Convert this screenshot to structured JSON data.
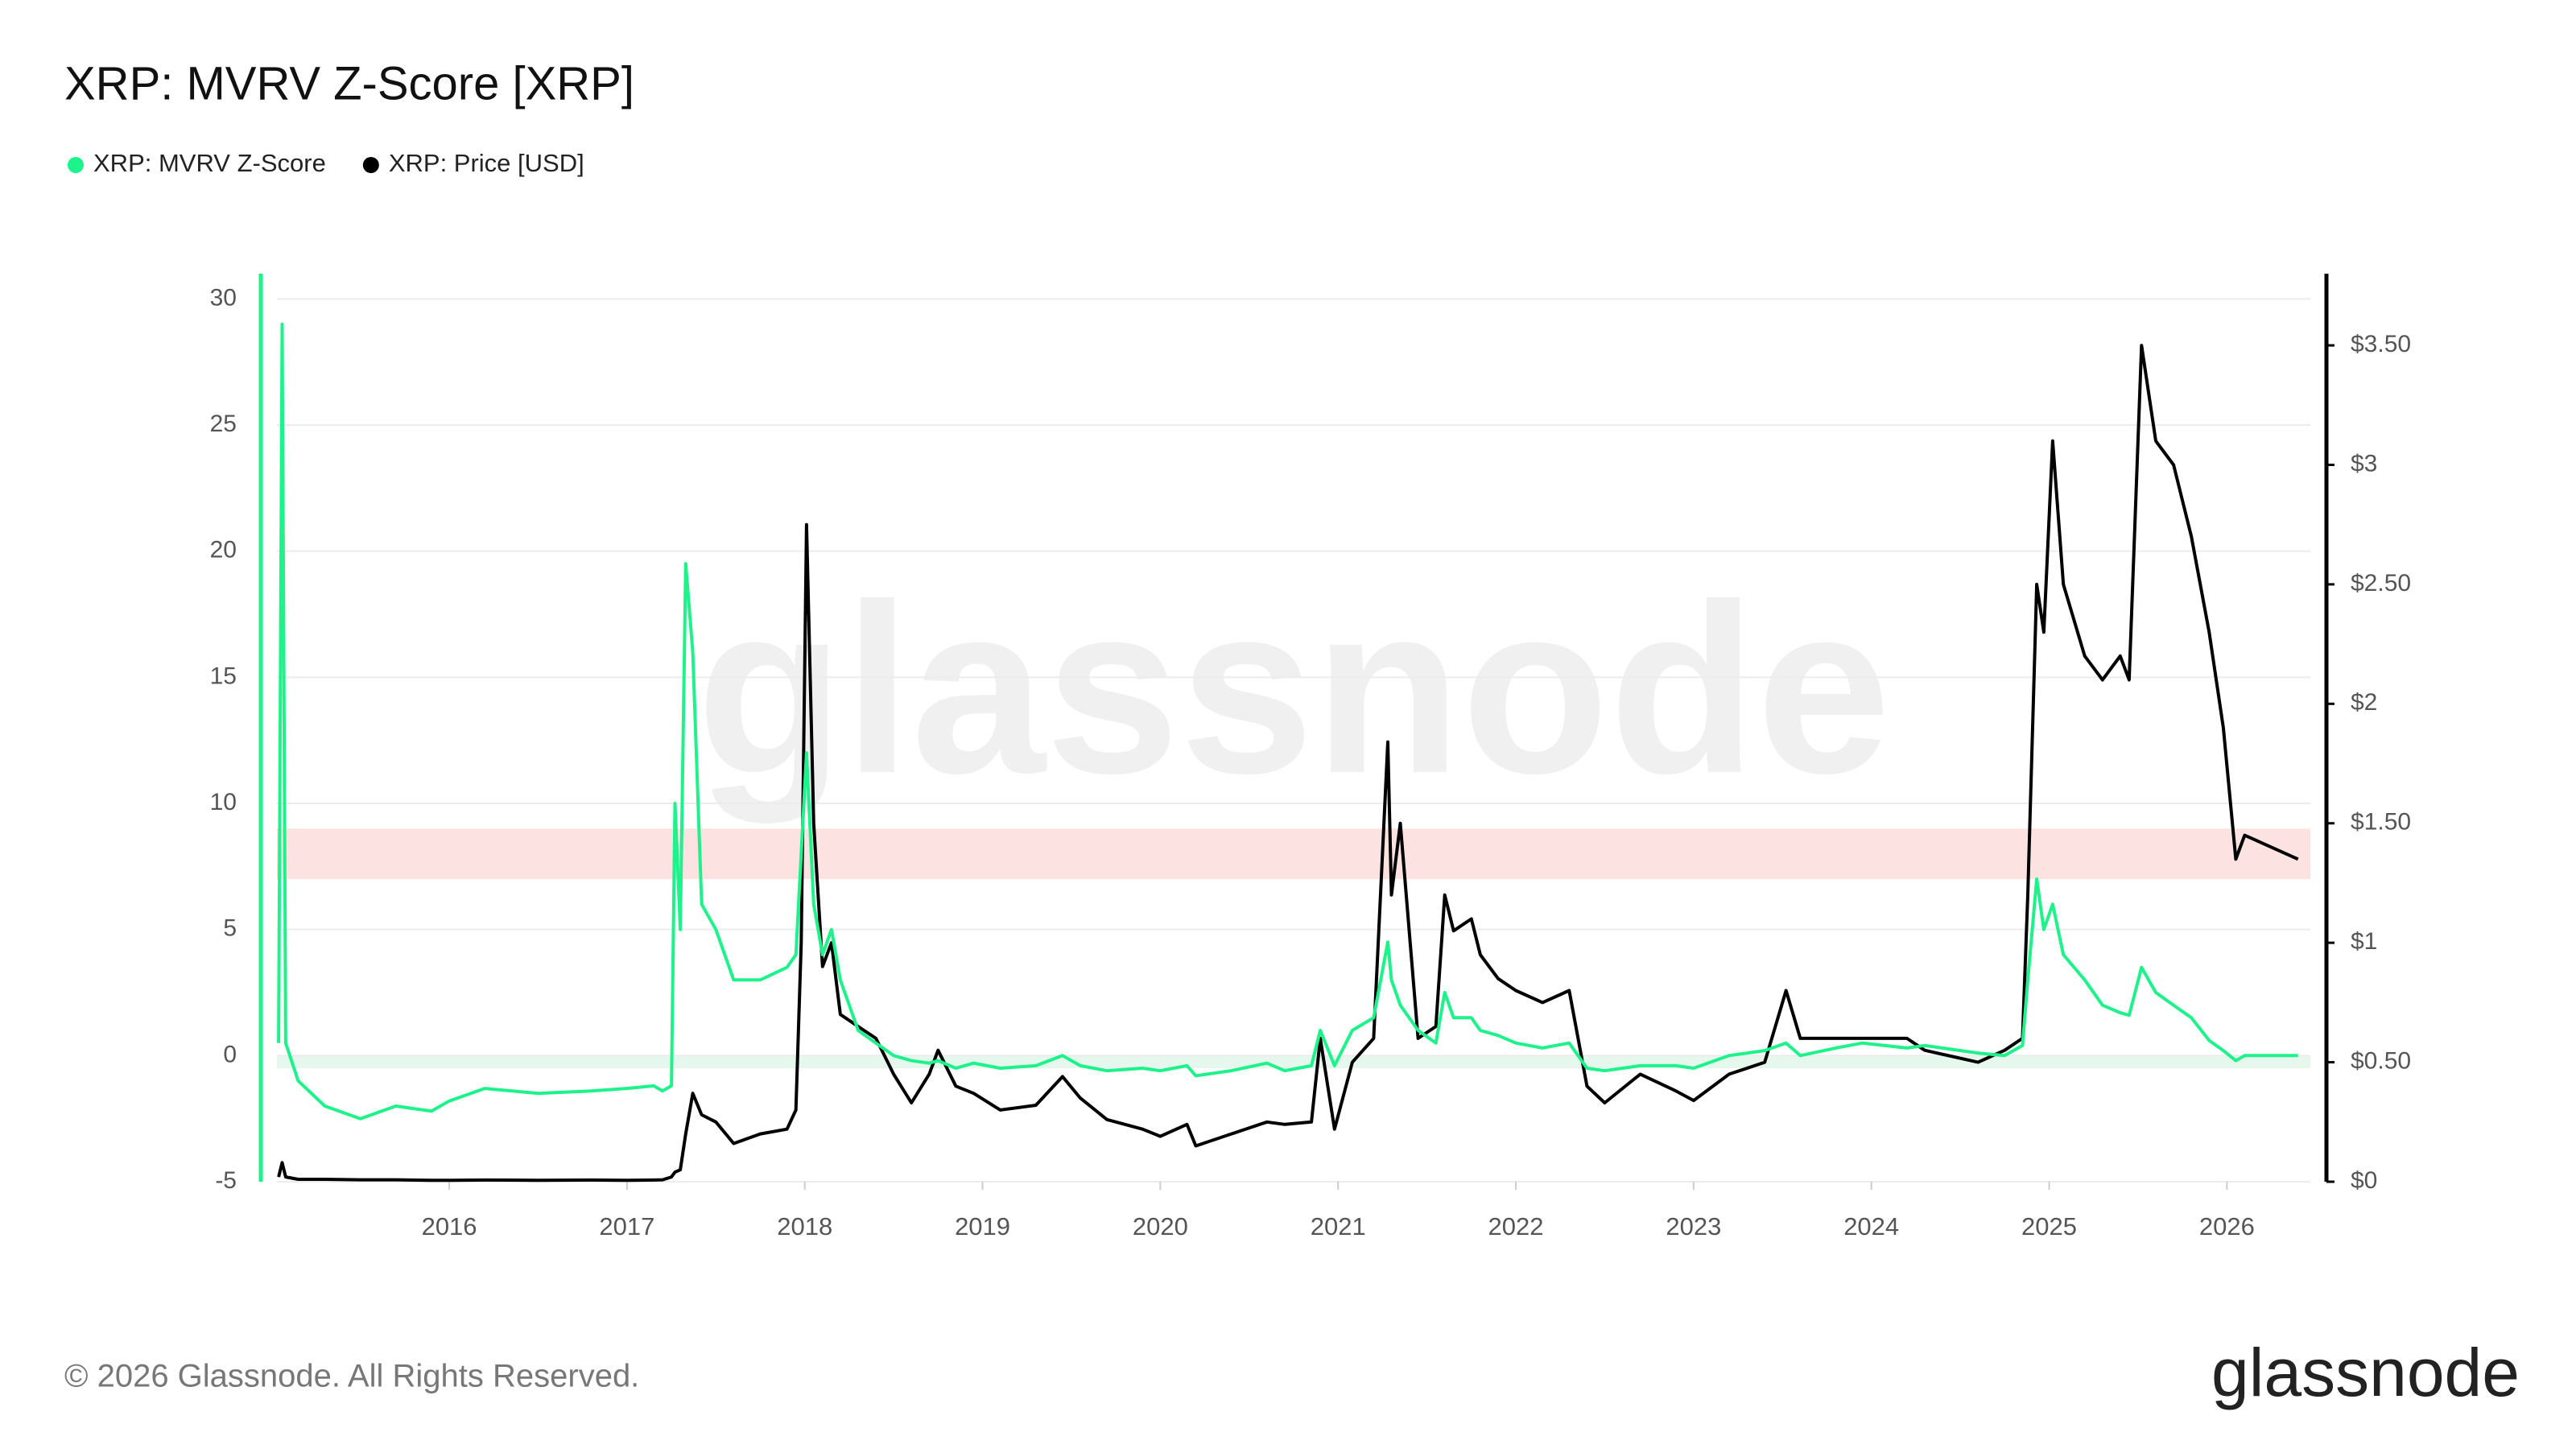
{
  "chart_data": {
    "type": "line",
    "title": "XRP: MVRV Z-Score [XRP]",
    "watermark": "glassnode",
    "x": [
      2015.04,
      2015.06,
      2015.08,
      2015.15,
      2015.3,
      2015.5,
      2015.7,
      2015.9,
      2016.0,
      2016.2,
      2016.5,
      2016.8,
      2017.0,
      2017.15,
      2017.2,
      2017.25,
      2017.27,
      2017.3,
      2017.33,
      2017.37,
      2017.42,
      2017.5,
      2017.6,
      2017.75,
      2017.9,
      2017.95,
      2017.98,
      2018.01,
      2018.05,
      2018.1,
      2018.15,
      2018.2,
      2018.3,
      2018.4,
      2018.5,
      2018.6,
      2018.7,
      2018.75,
      2018.85,
      2018.95,
      2019.1,
      2019.3,
      2019.45,
      2019.55,
      2019.7,
      2019.9,
      2020.0,
      2020.15,
      2020.2,
      2020.4,
      2020.6,
      2020.7,
      2020.85,
      2020.9,
      2020.98,
      2021.08,
      2021.2,
      2021.28,
      2021.3,
      2021.35,
      2021.45,
      2021.55,
      2021.6,
      2021.65,
      2021.75,
      2021.8,
      2021.9,
      2022.0,
      2022.15,
      2022.3,
      2022.4,
      2022.5,
      2022.7,
      2022.9,
      2023.0,
      2023.2,
      2023.4,
      2023.52,
      2023.6,
      2023.8,
      2023.95,
      2024.2,
      2024.3,
      2024.6,
      2024.75,
      2024.85,
      2024.88,
      2024.93,
      2024.97,
      2025.02,
      2025.08,
      2025.2,
      2025.3,
      2025.4,
      2025.45,
      2025.52,
      2025.6,
      2025.7,
      2025.8,
      2025.9,
      2025.98,
      2026.05,
      2026.1,
      2026.25,
      2026.4
    ],
    "series": [
      {
        "name": "XRP: MVRV Z-Score",
        "color": "#1ef28a",
        "axis": "y",
        "values": [
          0.5,
          29,
          0.5,
          -1,
          -2,
          -2.5,
          -2,
          -2.2,
          -1.8,
          -1.3,
          -1.5,
          -1.4,
          -1.3,
          -1.2,
          -1.4,
          -1.2,
          10,
          5,
          19.5,
          16,
          6,
          5,
          3,
          3,
          3.5,
          4,
          8,
          12,
          6,
          4,
          5,
          3,
          1,
          0.5,
          0,
          -0.2,
          -0.3,
          -0.2,
          -0.5,
          -0.3,
          -0.5,
          -0.4,
          0,
          -0.4,
          -0.6,
          -0.5,
          -0.6,
          -0.4,
          -0.8,
          -0.6,
          -0.3,
          -0.6,
          -0.4,
          1,
          -0.4,
          1,
          1.5,
          4.5,
          3,
          2,
          1,
          0.5,
          2.5,
          1.5,
          1.5,
          1,
          0.8,
          0.5,
          0.3,
          0.5,
          -0.5,
          -0.6,
          -0.4,
          -0.4,
          -0.5,
          0,
          0.2,
          0.5,
          0,
          0.3,
          0.5,
          0.3,
          0.4,
          0.1,
          0,
          0.4,
          3,
          7,
          5,
          6,
          4,
          3,
          2,
          1.7,
          1.6,
          3.5,
          2.5,
          2,
          1.5,
          0.6,
          0.2,
          -0.2,
          0,
          0,
          0
        ]
      },
      {
        "name": "XRP: Price [USD]",
        "color": "#000000",
        "axis": "y2",
        "values": [
          0.02,
          0.08,
          0.02,
          0.01,
          0.01,
          0.008,
          0.008,
          0.006,
          0.006,
          0.007,
          0.006,
          0.007,
          0.006,
          0.007,
          0.008,
          0.02,
          0.04,
          0.05,
          0.2,
          0.37,
          0.28,
          0.25,
          0.16,
          0.2,
          0.22,
          0.3,
          1.0,
          2.75,
          1.5,
          0.9,
          1.0,
          0.7,
          0.65,
          0.6,
          0.45,
          0.33,
          0.45,
          0.55,
          0.4,
          0.37,
          0.3,
          0.32,
          0.44,
          0.35,
          0.26,
          0.22,
          0.19,
          0.24,
          0.15,
          0.2,
          0.25,
          0.24,
          0.25,
          0.6,
          0.22,
          0.5,
          0.6,
          1.84,
          1.2,
          1.5,
          0.6,
          0.65,
          1.2,
          1.05,
          1.1,
          0.95,
          0.85,
          0.8,
          0.75,
          0.8,
          0.4,
          0.33,
          0.45,
          0.38,
          0.34,
          0.45,
          0.5,
          0.8,
          0.6,
          0.6,
          0.6,
          0.6,
          0.55,
          0.5,
          0.55,
          0.6,
          1.2,
          2.5,
          2.3,
          3.1,
          2.5,
          2.2,
          2.1,
          2.2,
          2.1,
          3.5,
          3.1,
          3.0,
          2.7,
          2.3,
          1.9,
          1.35,
          1.45,
          1.4,
          1.35
        ]
      }
    ],
    "xlim": [
      2014.94,
      2026.56
    ],
    "xticks": [
      2016,
      2017,
      2018,
      2019,
      2020,
      2021,
      2022,
      2023,
      2024,
      2025,
      2026
    ],
    "ylim": [
      -5,
      31
    ],
    "yticks": [
      -5,
      0,
      5,
      10,
      15,
      20,
      25,
      30
    ],
    "y2lim": [
      0,
      3.8
    ],
    "y2ticks": [
      {
        "value": 0,
        "label": "$0"
      },
      {
        "value": 0.5,
        "label": "$0.50"
      },
      {
        "value": 1,
        "label": "$1"
      },
      {
        "value": 1.5,
        "label": "$1.50"
      },
      {
        "value": 2,
        "label": "$2"
      },
      {
        "value": 2.5,
        "label": "$2.50"
      },
      {
        "value": 3,
        "label": "$3"
      },
      {
        "value": 3.5,
        "label": "$3.50"
      }
    ],
    "bands": [
      {
        "from": 7,
        "to": 9,
        "color": "#fde2e2"
      },
      {
        "from": -0.5,
        "to": 0,
        "color": "#e6f8ee"
      }
    ],
    "grid": true
  },
  "footer": "© 2026 Glassnode. All Rights Reserved.",
  "logo": "glassnode"
}
